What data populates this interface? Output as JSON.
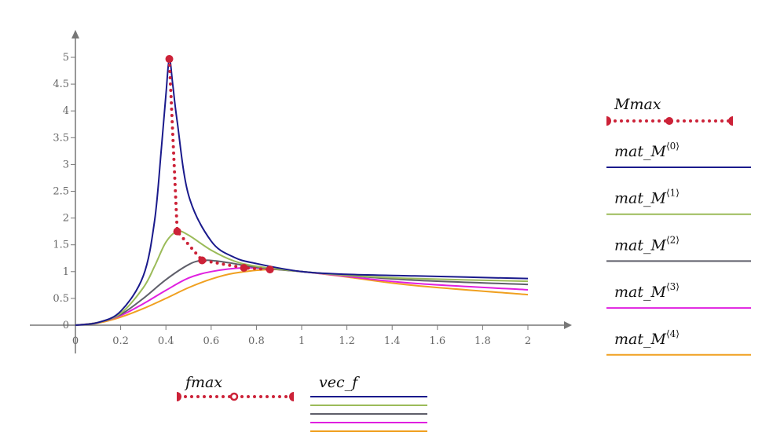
{
  "chart_data": {
    "type": "line",
    "xlim": [
      0,
      2
    ],
    "ylim": [
      0,
      5
    ],
    "x_ticks": [
      "0",
      "0.2",
      "0.4",
      "0.6",
      "0.8",
      "1",
      "1.2",
      "1.4",
      "1.6",
      "1.8",
      "2"
    ],
    "y_ticks": [
      "0",
      "0.5",
      "1",
      "1.5",
      "2",
      "2.5",
      "3",
      "3.5",
      "4",
      "4.5",
      "5"
    ],
    "grid": false,
    "x_legend": {
      "label": "fmax",
      "series_label": "vec_f"
    },
    "y_legend_title": "Mmax",
    "colors": {
      "marker": "#cc2238",
      "axis": "#777777"
    },
    "series": [
      {
        "name": "mat_M",
        "sup": "⟨0⟩",
        "color": "#1a1a8c",
        "x": [
          0,
          0.1,
          0.2,
          0.3,
          0.35,
          0.38,
          0.4,
          0.415,
          0.43,
          0.45,
          0.5,
          0.6,
          0.7,
          0.8,
          1,
          1.2,
          1.5,
          2
        ],
        "y": [
          0,
          0.05,
          0.26,
          0.92,
          1.95,
          3.3,
          4.3,
          4.97,
          4.5,
          3.8,
          2.43,
          1.57,
          1.27,
          1.15,
          1.0,
          0.95,
          0.92,
          0.87
        ]
      },
      {
        "name": "mat_M",
        "sup": "⟨1⟩",
        "color": "#9bbb59",
        "x": [
          0,
          0.1,
          0.2,
          0.3,
          0.35,
          0.4,
          0.45,
          0.5,
          0.6,
          0.7,
          0.8,
          1,
          1.2,
          1.5,
          2
        ],
        "y": [
          0,
          0.05,
          0.22,
          0.7,
          1.1,
          1.55,
          1.75,
          1.68,
          1.4,
          1.2,
          1.1,
          1.0,
          0.93,
          0.87,
          0.82
        ]
      },
      {
        "name": "mat_M",
        "sup": "⟨2⟩",
        "color": "#5f5f6a",
        "x": [
          0,
          0.1,
          0.2,
          0.3,
          0.4,
          0.5,
          0.56,
          0.62,
          0.7,
          0.8,
          1,
          1.2,
          1.5,
          2
        ],
        "y": [
          0,
          0.05,
          0.2,
          0.5,
          0.85,
          1.13,
          1.21,
          1.2,
          1.15,
          1.08,
          1.0,
          0.93,
          0.84,
          0.76
        ]
      },
      {
        "name": "mat_M",
        "sup": "⟨3⟩",
        "color": "#e020e0",
        "x": [
          0,
          0.1,
          0.2,
          0.3,
          0.4,
          0.5,
          0.6,
          0.745,
          0.9,
          1,
          1.2,
          1.5,
          2
        ],
        "y": [
          0,
          0.05,
          0.18,
          0.4,
          0.65,
          0.88,
          1.0,
          1.07,
          1.04,
          1.0,
          0.91,
          0.78,
          0.66
        ]
      },
      {
        "name": "mat_M",
        "sup": "⟨4⟩",
        "color": "#f0a020",
        "x": [
          0,
          0.1,
          0.2,
          0.3,
          0.4,
          0.5,
          0.6,
          0.7,
          0.86,
          1,
          1.2,
          1.5,
          2
        ],
        "y": [
          0,
          0.04,
          0.15,
          0.31,
          0.5,
          0.7,
          0.86,
          0.97,
          1.04,
          1.0,
          0.9,
          0.74,
          0.57
        ]
      }
    ],
    "peaks": {
      "fmax": [
        0.415,
        0.45,
        0.56,
        0.745,
        0.86
      ],
      "Mmax": [
        4.97,
        1.75,
        1.21,
        1.07,
        1.04
      ]
    }
  }
}
